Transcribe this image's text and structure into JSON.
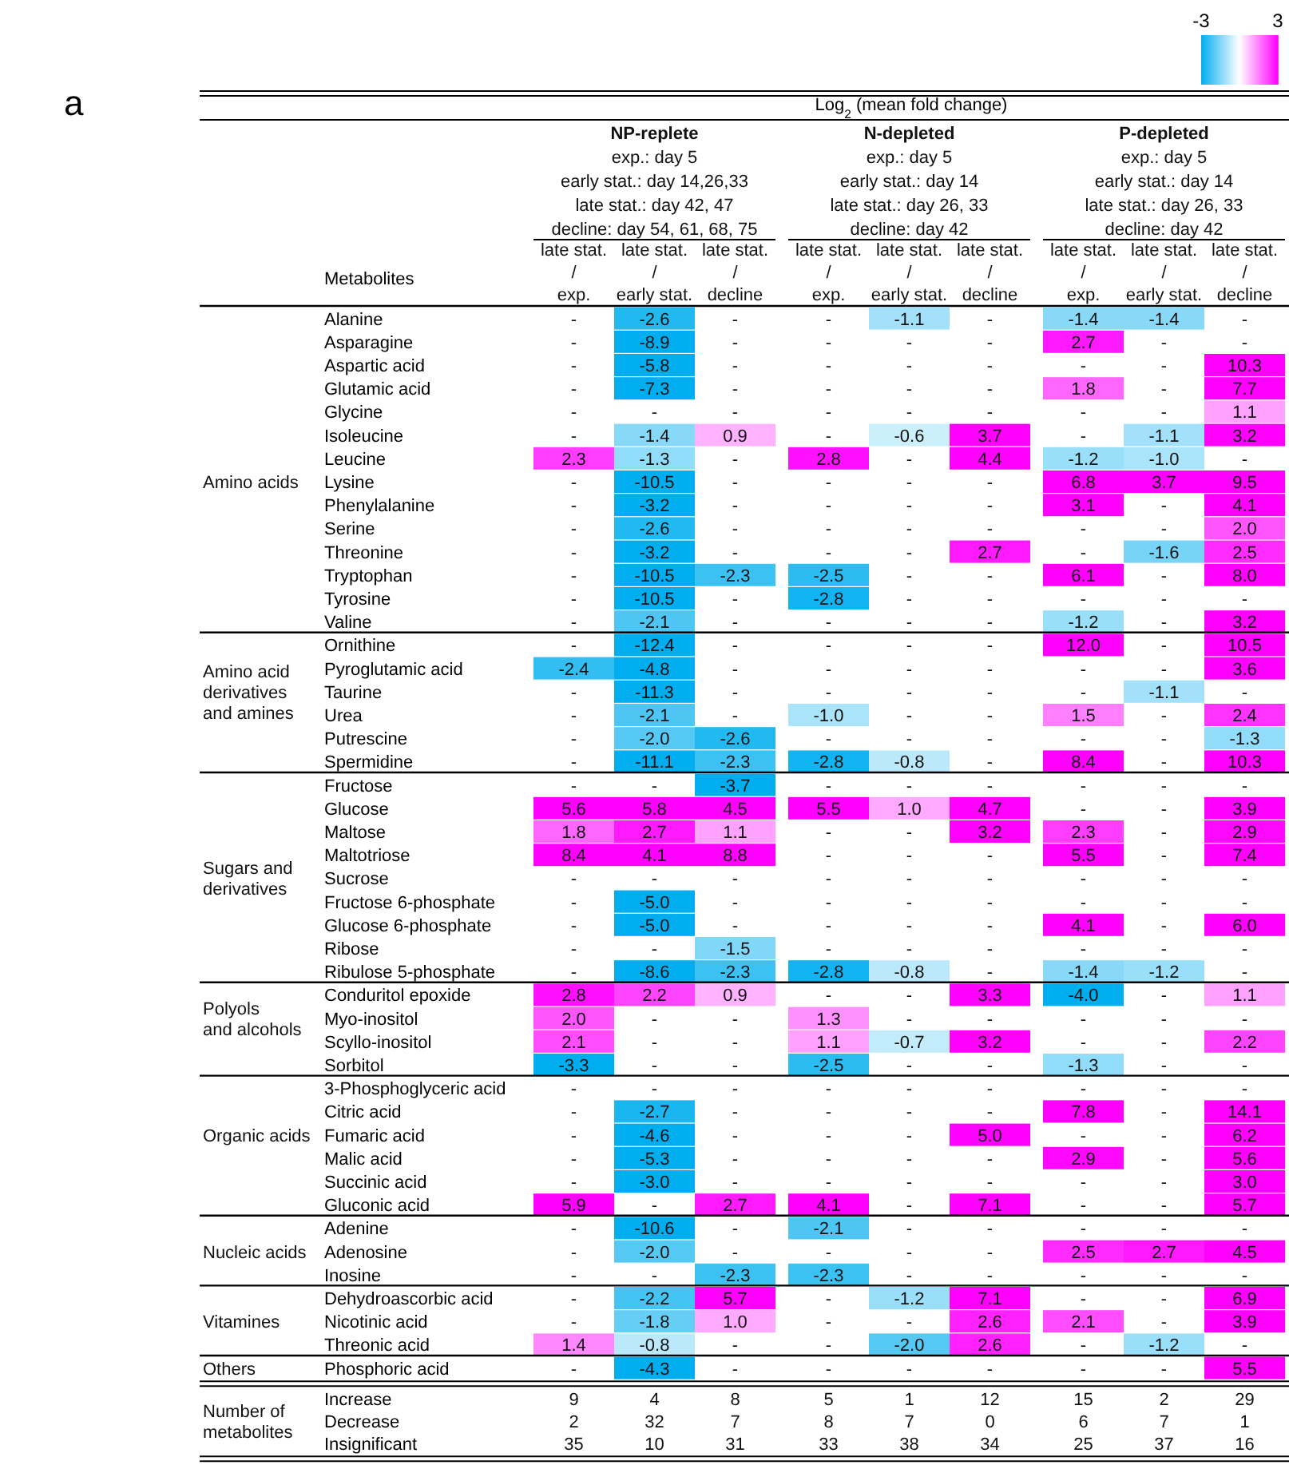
{
  "chart_data": [
    {
      "type": "heatmap",
      "title": "Log$_{2}$ (mean fold change)",
      "ylabel": "Metabolites",
      "annotations": [
        "a",
        "NP-replete\nexp.: day 5\nearly stat.: day 14,26,33\nlate stat.: day 42, 47\ndecline: day 54, 61, 68, 75",
        "N-depleted\nexp.: day 5\nearly stat.: day 14\nlate stat.: day 26, 33\ndecline: day 42",
        "P-depleted\nexp.: day 5\nearly stat.: day 14\nlate stat.: day 26, 33\ndecline: day 42"
      ],
      "categories": [
        "late stat.\n/\nexp.",
        "late stat.\n/\nearly stat.",
        "late stat.\n/\ndecline",
        "late stat.\n/\nexp.",
        "late stat.\n/\nearly stat.",
        "late stat.\n/\ndecline",
        "late stat.\n/\nexp.",
        "late stat.\n/\nearly stat.",
        "late stat.\n/\ndecline"
      ],
      "clim": [
        -3,
        3
      ],
      "cticks": [
        -3,
        3
      ],
      "y_categories": [
        "Alanine",
        "Asparagine",
        "Aspartic acid",
        "Glutamic acid",
        "Glycine",
        "Isoleucine",
        "Leucine",
        "Lysine",
        "Phenylalanine",
        "Serine",
        "Threonine",
        "Tryptophan",
        "Tyrosine",
        "Valine"
      ],
      "y2_categories": [
        null,
        null,
        null,
        null,
        null,
        null,
        null,
        "Amino acids",
        null,
        null,
        null,
        null,
        null,
        null
      ],
      "cells": [
        [
          null,
          -2.6,
          null,
          null,
          -1.1,
          null,
          -1.4,
          -1.4,
          null
        ],
        [
          null,
          -8.9,
          null,
          null,
          null,
          null,
          2.7,
          null,
          null
        ],
        [
          null,
          -5.8,
          null,
          null,
          null,
          null,
          null,
          null,
          10.3
        ],
        [
          null,
          -7.3,
          null,
          null,
          null,
          null,
          1.8,
          null,
          7.7
        ],
        [
          null,
          null,
          null,
          null,
          null,
          null,
          null,
          null,
          1.1
        ],
        [
          null,
          -1.4,
          0.9,
          null,
          -0.6,
          3.7,
          null,
          -1.1,
          3.2
        ],
        [
          2.3,
          -1.3,
          null,
          2.8,
          null,
          4.4,
          -1.2,
          -1.0,
          null
        ],
        [
          null,
          -10.5,
          null,
          null,
          null,
          null,
          6.8,
          3.7,
          9.5
        ],
        [
          null,
          -3.2,
          null,
          null,
          null,
          null,
          3.1,
          null,
          4.1
        ],
        [
          null,
          -2.6,
          null,
          null,
          null,
          null,
          null,
          null,
          2.0
        ],
        [
          null,
          -3.2,
          null,
          null,
          null,
          2.7,
          null,
          -1.6,
          2.5
        ],
        [
          null,
          -10.5,
          -2.3,
          -2.5,
          null,
          null,
          6.1,
          null,
          8.0
        ],
        [
          null,
          -10.5,
          null,
          -2.8,
          null,
          null,
          null,
          null,
          null
        ],
        [
          null,
          -2.1,
          null,
          null,
          null,
          null,
          -1.2,
          null,
          3.2
        ]
      ],
      "cell_labels": [
        [
          "-",
          "-2.6",
          "-",
          "-",
          "-1.1",
          "-",
          "-1.4",
          "-1.4",
          "-"
        ],
        [
          "-",
          "-8.9",
          "-",
          "-",
          "-",
          "-",
          "2.7",
          "-",
          "-"
        ],
        [
          "-",
          "-5.8",
          "-",
          "-",
          "-",
          "-",
          "-",
          "-",
          "10.3"
        ],
        [
          "-",
          "-7.3",
          "-",
          "-",
          "-",
          "-",
          "1.8",
          "-",
          "7.7"
        ],
        [
          "-",
          "-",
          "-",
          "-",
          "-",
          "-",
          "-",
          "-",
          "1.1"
        ],
        [
          "-",
          "-1.4",
          "0.9",
          "-",
          "-0.6",
          "3.7",
          "-",
          "-1.1",
          "3.2"
        ],
        [
          "2.3",
          "-1.3",
          "-",
          "2.8",
          "-",
          "4.4",
          "-1.2",
          "-1.0",
          "-"
        ],
        [
          "-",
          "-10.5",
          "-",
          "-",
          "-",
          "-",
          "6.8",
          "3.7",
          "9.5"
        ],
        [
          "-",
          "-3.2",
          "-",
          "-",
          "-",
          "-",
          "3.1",
          "-",
          "4.1"
        ],
        [
          "-",
          "-2.6",
          "-",
          "-",
          "-",
          "-",
          "-",
          "-",
          "2.0"
        ],
        [
          "-",
          "-3.2",
          "-",
          "-",
          "-",
          "2.7",
          "-",
          "-1.6",
          "2.5"
        ],
        [
          "-",
          "-10.5",
          "-2.3",
          "-2.5",
          "-",
          "-",
          "6.1",
          "-",
          "8.0"
        ],
        [
          "-",
          "-10.5",
          "-",
          "-2.8",
          "-",
          "-",
          "-",
          "-",
          "-"
        ],
        [
          "-",
          "-2.1",
          "-",
          "-",
          "-",
          "-",
          "-1.2",
          "-",
          "3.2"
        ]
      ]
    },
    {
      "type": "heatmap",
      "categories": [
        null,
        null,
        null,
        null,
        null,
        null,
        null,
        null,
        null
      ],
      "y_categories": [
        "Ornithine",
        "Pyroglutamic acid",
        "Taurine",
        "Urea",
        "Putrescine",
        "Spermidine"
      ],
      "y2_categories": [
        null,
        null,
        "Amino acid\nderivatives\nand amines",
        null,
        null,
        null
      ],
      "cells": [
        [
          null,
          -12.4,
          null,
          null,
          null,
          null,
          12.0,
          null,
          10.5
        ],
        [
          -2.4,
          -4.8,
          null,
          null,
          null,
          null,
          null,
          null,
          3.6
        ],
        [
          null,
          -11.3,
          null,
          null,
          null,
          null,
          null,
          -1.1,
          null
        ],
        [
          null,
          -2.1,
          null,
          -1.0,
          null,
          null,
          1.5,
          null,
          2.4
        ],
        [
          null,
          -2.0,
          -2.6,
          null,
          null,
          null,
          null,
          null,
          -1.3
        ],
        [
          null,
          -11.1,
          -2.3,
          -2.8,
          -0.8,
          null,
          8.4,
          null,
          10.3
        ]
      ],
      "cell_labels": [
        [
          "-",
          "-12.4",
          "-",
          "-",
          "-",
          "-",
          "12.0",
          "-",
          "10.5"
        ],
        [
          "-2.4",
          "-4.8",
          "-",
          "-",
          "-",
          "-",
          "-",
          "-",
          "3.6"
        ],
        [
          "-",
          "-11.3",
          "-",
          "-",
          "-",
          "-",
          "-",
          "-1.1",
          "-"
        ],
        [
          "-",
          "-2.1",
          "-",
          "-1.0",
          "-",
          "-",
          "1.5",
          "-",
          "2.4"
        ],
        [
          "-",
          "-2.0",
          "-2.6",
          "-",
          "-",
          "-",
          "-",
          "-",
          "-1.3"
        ],
        [
          "-",
          "-11.1",
          "-2.3",
          "-2.8",
          "-0.8",
          "-",
          "8.4",
          "-",
          "10.3"
        ]
      ]
    },
    {
      "type": "heatmap",
      "categories": [
        null,
        null,
        null,
        null,
        null,
        null,
        null,
        null,
        null
      ],
      "y_categories": [
        "Fructose",
        "Glucose",
        "Maltose",
        "Maltotriose",
        "Sucrose",
        "Fructose 6-phosphate",
        "Glucose 6-phosphate",
        "Ribose",
        "Ribulose 5-phosphate"
      ],
      "y2_categories": [
        null,
        null,
        null,
        null,
        "Sugars and\nderivatives",
        null,
        null,
        null,
        null
      ],
      "cells": [
        [
          null,
          null,
          -3.7,
          null,
          null,
          null,
          null,
          null,
          null
        ],
        [
          5.6,
          5.8,
          4.5,
          5.5,
          1.0,
          4.7,
          null,
          null,
          3.9
        ],
        [
          1.8,
          2.7,
          1.1,
          null,
          null,
          3.2,
          2.3,
          null,
          2.9
        ],
        [
          8.4,
          4.1,
          8.8,
          null,
          null,
          null,
          5.5,
          null,
          7.4
        ],
        [
          null,
          null,
          null,
          null,
          null,
          null,
          null,
          null,
          null
        ],
        [
          null,
          -5.0,
          null,
          null,
          null,
          null,
          null,
          null,
          null
        ],
        [
          null,
          -5.0,
          null,
          null,
          null,
          null,
          4.1,
          null,
          6.0
        ],
        [
          null,
          null,
          -1.5,
          null,
          null,
          null,
          null,
          null,
          null
        ],
        [
          null,
          -8.6,
          -2.3,
          -2.8,
          -0.8,
          null,
          -1.4,
          -1.2,
          null
        ]
      ],
      "cell_labels": [
        [
          "-",
          "-",
          "-3.7",
          "-",
          "-",
          "-",
          "-",
          "-",
          "-"
        ],
        [
          "5.6",
          "5.8",
          "4.5",
          "5.5",
          "1.0",
          "4.7",
          "-",
          "-",
          "3.9"
        ],
        [
          "1.8",
          "2.7",
          "1.1",
          "-",
          "-",
          "3.2",
          "2.3",
          "-",
          "2.9"
        ],
        [
          "8.4",
          "4.1",
          "8.8",
          "-",
          "-",
          "-",
          "5.5",
          "-",
          "7.4"
        ],
        [
          "-",
          "-",
          "-",
          "-",
          "-",
          "-",
          "-",
          "-",
          "-"
        ],
        [
          "-",
          "-5.0",
          "-",
          "-",
          "-",
          "-",
          "-",
          "-",
          "-"
        ],
        [
          "-",
          "-5.0",
          "-",
          "-",
          "-",
          "-",
          "4.1",
          "-",
          "6.0"
        ],
        [
          "-",
          "-",
          "-1.5",
          "-",
          "-",
          "-",
          "-",
          "-",
          "-"
        ],
        [
          "-",
          "-8.6",
          "-2.3",
          "-2.8",
          "-0.8",
          "-",
          "-1.4",
          "-1.2",
          "-"
        ]
      ]
    },
    {
      "type": "heatmap",
      "categories": [
        null,
        null,
        null,
        null,
        null,
        null,
        null,
        null,
        null
      ],
      "y_categories": [
        "Conduritol epoxide",
        "Myo-inositol",
        "Scyllo-inositol",
        "Sorbitol"
      ],
      "y2_categories": [
        null,
        "Polyols\nand alcohols",
        null,
        null
      ],
      "cells": [
        [
          2.8,
          2.2,
          0.9,
          null,
          null,
          3.3,
          -4.0,
          null,
          1.1
        ],
        [
          2.0,
          null,
          null,
          1.3,
          null,
          null,
          null,
          null,
          null
        ],
        [
          2.1,
          null,
          null,
          1.1,
          -0.7,
          3.2,
          null,
          null,
          2.2
        ],
        [
          -3.3,
          null,
          null,
          -2.5,
          null,
          null,
          -1.3,
          null,
          null
        ]
      ],
      "cell_labels": [
        [
          "2.8",
          "2.2",
          "0.9",
          "-",
          "-",
          "3.3",
          "-4.0",
          "-",
          "1.1"
        ],
        [
          "2.0",
          "-",
          "-",
          "1.3",
          "-",
          "-",
          "-",
          "-",
          "-"
        ],
        [
          "2.1",
          "-",
          "-",
          "1.1",
          "-0.7",
          "3.2",
          "-",
          "-",
          "2.2"
        ],
        [
          "-3.3",
          "-",
          "-",
          "-2.5",
          "-",
          "-",
          "-1.3",
          "-",
          "-"
        ]
      ]
    },
    {
      "type": "heatmap",
      "categories": [
        null,
        null,
        null,
        null,
        null,
        null,
        null,
        null,
        null
      ],
      "y_categories": [
        "3-Phosphoglyceric acid",
        "Citric acid",
        "Fumaric acid",
        "Malic acid",
        "Succinic acid",
        "Gluconic acid"
      ],
      "y2_categories": [
        null,
        null,
        "Organic acids",
        null,
        null,
        null
      ],
      "cells": [
        [
          null,
          null,
          null,
          null,
          null,
          null,
          null,
          null,
          null
        ],
        [
          null,
          -2.7,
          null,
          null,
          null,
          null,
          7.8,
          null,
          14.1
        ],
        [
          null,
          -4.6,
          null,
          null,
          null,
          5.0,
          null,
          null,
          6.2
        ],
        [
          null,
          -5.3,
          null,
          null,
          null,
          null,
          2.9,
          null,
          5.6
        ],
        [
          null,
          -3.0,
          null,
          null,
          null,
          null,
          null,
          null,
          3.0
        ],
        [
          5.9,
          null,
          2.7,
          4.1,
          null,
          7.1,
          null,
          null,
          5.7
        ]
      ],
      "cell_labels": [
        [
          "-",
          "-",
          "-",
          "-",
          "-",
          "-",
          "-",
          "-",
          "-"
        ],
        [
          "-",
          "-2.7",
          "-",
          "-",
          "-",
          "-",
          "7.8",
          "-",
          "14.1"
        ],
        [
          "-",
          "-4.6",
          "-",
          "-",
          "-",
          "5.0",
          "-",
          "-",
          "6.2"
        ],
        [
          "-",
          "-5.3",
          "-",
          "-",
          "-",
          "-",
          "2.9",
          "-",
          "5.6"
        ],
        [
          "-",
          "-3.0",
          "-",
          "-",
          "-",
          "-",
          "-",
          "-",
          "3.0"
        ],
        [
          "5.9",
          "-",
          "2.7",
          "4.1",
          "-",
          "7.1",
          "-",
          "-",
          "5.7"
        ]
      ]
    },
    {
      "type": "heatmap",
      "categories": [
        null,
        null,
        null,
        null,
        null,
        null,
        null,
        null,
        null
      ],
      "y_categories": [
        "Adenine",
        "Adenosine",
        "Inosine"
      ],
      "y2_categories": [
        null,
        "Nucleic acids",
        null
      ],
      "cells": [
        [
          null,
          -10.6,
          null,
          -2.1,
          null,
          null,
          null,
          null,
          null
        ],
        [
          null,
          -2.0,
          null,
          null,
          null,
          null,
          2.5,
          2.7,
          4.5
        ],
        [
          null,
          null,
          -2.3,
          -2.3,
          null,
          null,
          null,
          null,
          null
        ]
      ],
      "cell_labels": [
        [
          "-",
          "-10.6",
          "-",
          "-2.1",
          "-",
          "-",
          "-",
          "-",
          "-"
        ],
        [
          "-",
          "-2.0",
          "-",
          "-",
          "-",
          "-",
          "2.5",
          "2.7",
          "4.5"
        ],
        [
          "-",
          "-",
          "-2.3",
          "-2.3",
          "-",
          "-",
          "-",
          "-",
          "-"
        ]
      ]
    },
    {
      "type": "heatmap",
      "categories": [
        null,
        null,
        null,
        null,
        null,
        null,
        null,
        null,
        null
      ],
      "y_categories": [
        "Dehydroascorbic acid",
        "Nicotinic acid",
        "Threonic acid"
      ],
      "y2_categories": [
        null,
        "Vitamines",
        null
      ],
      "cells": [
        [
          null,
          -2.2,
          5.7,
          null,
          -1.2,
          7.1,
          null,
          null,
          6.9
        ],
        [
          null,
          -1.8,
          1.0,
          null,
          null,
          2.6,
          2.1,
          null,
          3.9
        ],
        [
          1.4,
          -0.8,
          null,
          null,
          -2.0,
          2.6,
          null,
          -1.2,
          null
        ]
      ],
      "cell_labels": [
        [
          "-",
          "-2.2",
          "5.7",
          "-",
          "-1.2",
          "7.1",
          "-",
          "-",
          "6.9"
        ],
        [
          "-",
          "-1.8",
          "1.0",
          "-",
          "-",
          "2.6",
          "2.1",
          "-",
          "3.9"
        ],
        [
          "1.4",
          "-0.8",
          "-",
          "-",
          "-2.0",
          "2.6",
          "-",
          "-1.2",
          "-"
        ]
      ]
    },
    {
      "type": "heatmap",
      "categories": [
        null,
        null,
        null,
        null,
        null,
        null,
        null,
        null,
        null
      ],
      "y_categories": [
        "Phosphoric acid"
      ],
      "y2_categories": [
        "Others"
      ],
      "cells": [
        [
          null,
          -4.3,
          null,
          null,
          null,
          null,
          null,
          null,
          5.5
        ]
      ],
      "cell_labels": [
        [
          "-",
          "-4.3",
          "-",
          "-",
          "-",
          "-",
          "-",
          "-",
          "5.5"
        ]
      ]
    },
    {
      "type": "heatmap",
      "categories": [
        null,
        null,
        null,
        null,
        null,
        null,
        null,
        null,
        null
      ],
      "y_categories": [
        "Increase",
        "Decrease",
        "Insignificant"
      ],
      "y2_categories": [
        null,
        "Number of\nmetabolites",
        null
      ],
      "cells": [
        [
          null,
          null,
          null,
          null,
          null,
          null,
          null,
          null,
          null
        ],
        [
          null,
          null,
          null,
          null,
          null,
          null,
          null,
          null,
          null
        ],
        [
          null,
          null,
          null,
          null,
          null,
          null,
          null,
          null,
          null
        ]
      ],
      "cell_labels": [
        [
          "9",
          "4",
          "8",
          "5",
          "1",
          "12",
          "15",
          "2",
          "29"
        ],
        [
          "2",
          "32",
          "7",
          "8",
          "7",
          "0",
          "6",
          "7",
          "1"
        ],
        [
          "35",
          "10",
          "31",
          "33",
          "38",
          "34",
          "25",
          "37",
          "16"
        ]
      ]
    }
  ]
}
